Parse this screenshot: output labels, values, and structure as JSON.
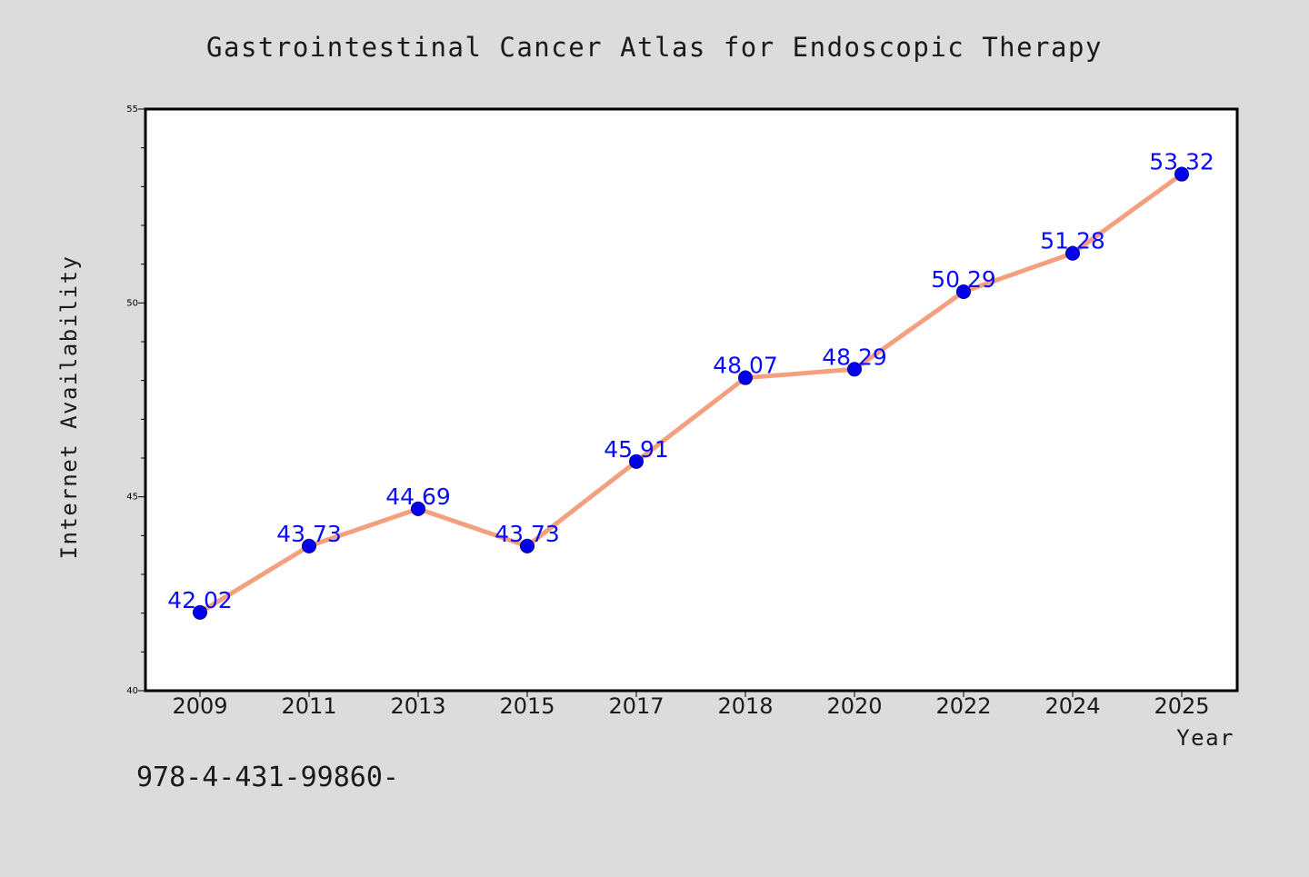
{
  "chart_data": {
    "type": "line",
    "title": "Gastrointestinal Cancer Atlas for Endoscopic Therapy",
    "xlabel": "Year",
    "ylabel": "Internet Availability",
    "categories": [
      "2009",
      "2011",
      "2013",
      "2015",
      "2017",
      "2018",
      "2020",
      "2022",
      "2024",
      "2025"
    ],
    "series": [
      {
        "values": [
          42.02,
          43.73,
          44.69,
          43.73,
          45.91,
          48.07,
          48.29,
          50.29,
          51.28,
          53.32
        ],
        "labels": [
          "42.02",
          "43.73",
          "44.69",
          "43.73",
          "45.91",
          "48.07",
          "48.29",
          "50.29",
          "51.28",
          "53.32"
        ]
      }
    ],
    "ylim": [
      40,
      55
    ],
    "yticks": [
      "40",
      "45",
      "50",
      "55"
    ],
    "grid": false,
    "line_color": "#f4a07e",
    "marker_color": "#0000ee",
    "label_color": "#0a0aff"
  },
  "footer": {
    "isbn": "978-4-431-99860-"
  }
}
